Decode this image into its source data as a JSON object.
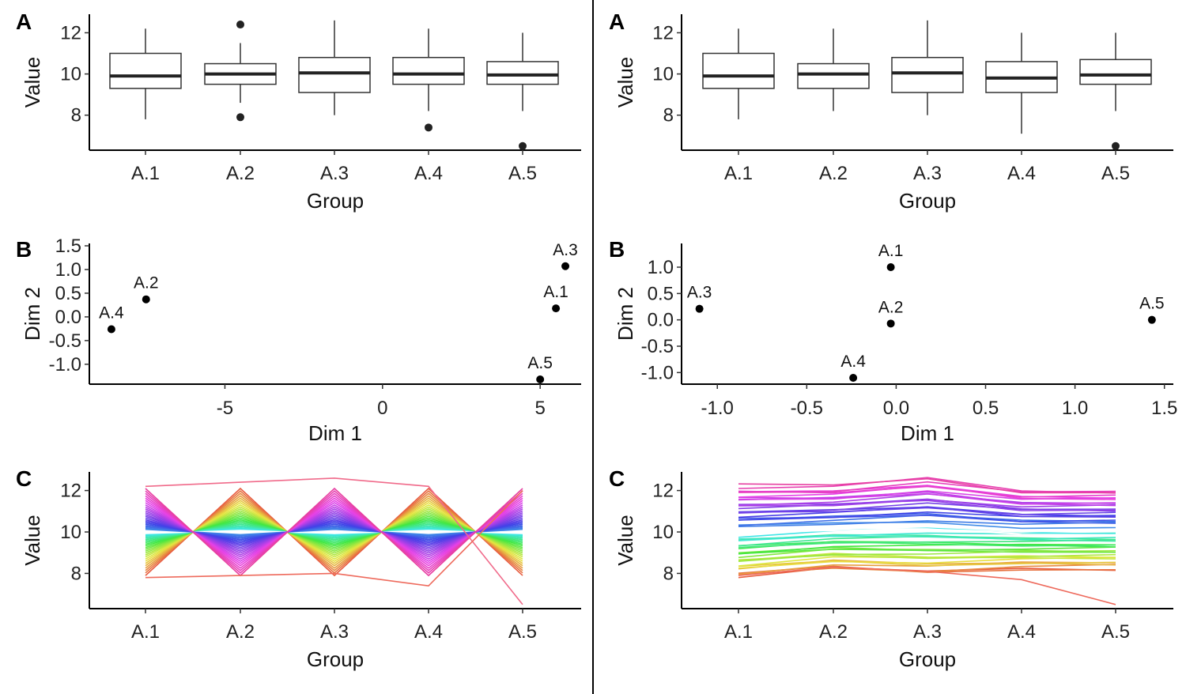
{
  "chart_data": [
    {
      "type": "box",
      "panel": "A",
      "column": "left",
      "xlabel": "Group",
      "ylabel": "Value",
      "categories": [
        "A.1",
        "A.2",
        "A.3",
        "A.4",
        "A.5"
      ],
      "ylim": [
        6.3,
        12.9
      ],
      "yticks": [
        8,
        10,
        12
      ],
      "ytick_labels": [
        "8",
        "10",
        "12"
      ],
      "boxes": [
        {
          "whisker_low": 7.8,
          "q1": 9.3,
          "median": 9.9,
          "q3": 11.0,
          "whisker_high": 12.2,
          "outliers": []
        },
        {
          "whisker_low": 8.6,
          "q1": 9.5,
          "median": 10.0,
          "q3": 10.5,
          "whisker_high": 11.5,
          "outliers": [
            12.4,
            7.9
          ]
        },
        {
          "whisker_low": 8.0,
          "q1": 9.1,
          "median": 10.05,
          "q3": 10.8,
          "whisker_high": 12.6,
          "outliers": []
        },
        {
          "whisker_low": 8.2,
          "q1": 9.5,
          "median": 10.0,
          "q3": 10.8,
          "whisker_high": 12.2,
          "outliers": [
            7.4
          ]
        },
        {
          "whisker_low": 8.2,
          "q1": 9.5,
          "median": 9.95,
          "q3": 10.6,
          "whisker_high": 12.0,
          "outliers": [
            6.5
          ]
        }
      ]
    },
    {
      "type": "box",
      "panel": "A",
      "column": "right",
      "xlabel": "Group",
      "ylabel": "Value",
      "categories": [
        "A.1",
        "A.2",
        "A.3",
        "A.4",
        "A.5"
      ],
      "ylim": [
        6.3,
        12.9
      ],
      "yticks": [
        8,
        10,
        12
      ],
      "ytick_labels": [
        "8",
        "10",
        "12"
      ],
      "boxes": [
        {
          "whisker_low": 7.8,
          "q1": 9.3,
          "median": 9.9,
          "q3": 11.0,
          "whisker_high": 12.2,
          "outliers": []
        },
        {
          "whisker_low": 8.2,
          "q1": 9.3,
          "median": 10.0,
          "q3": 10.5,
          "whisker_high": 12.2,
          "outliers": []
        },
        {
          "whisker_low": 8.0,
          "q1": 9.1,
          "median": 10.05,
          "q3": 10.8,
          "whisker_high": 12.6,
          "outliers": []
        },
        {
          "whisker_low": 7.1,
          "q1": 9.1,
          "median": 9.8,
          "q3": 10.6,
          "whisker_high": 12.0,
          "outliers": []
        },
        {
          "whisker_low": 8.2,
          "q1": 9.5,
          "median": 9.95,
          "q3": 10.7,
          "whisker_high": 12.0,
          "outliers": [
            6.5
          ]
        }
      ]
    },
    {
      "type": "scatter",
      "panel": "B",
      "column": "left",
      "xlabel": "Dim 1",
      "ylabel": "Dim 2",
      "xlim": [
        -9.3,
        6.3
      ],
      "ylim": [
        -1.42,
        1.55
      ],
      "xticks": [
        -5,
        0,
        5
      ],
      "xtick_labels": [
        "-5",
        "0",
        "5"
      ],
      "yticks": [
        -1.0,
        -0.5,
        0.0,
        0.5,
        1.0,
        1.5
      ],
      "ytick_labels": [
        "-1.0",
        "-0.5",
        "0.0",
        "0.5",
        "1.0",
        "1.5"
      ],
      "points": [
        {
          "label": "A.1",
          "x": 5.5,
          "y": 0.18
        },
        {
          "label": "A.2",
          "x": -7.5,
          "y": 0.37
        },
        {
          "label": "A.3",
          "x": 5.8,
          "y": 1.07
        },
        {
          "label": "A.4",
          "x": -8.6,
          "y": -0.26
        },
        {
          "label": "A.5",
          "x": 5.0,
          "y": -1.32
        }
      ]
    },
    {
      "type": "scatter",
      "panel": "B",
      "column": "right",
      "xlabel": "Dim 1",
      "ylabel": "Dim 2",
      "xlim": [
        -1.2,
        1.55
      ],
      "ylim": [
        -1.22,
        1.45
      ],
      "xticks": [
        -1.0,
        -0.5,
        0.0,
        0.5,
        1.0,
        1.5
      ],
      "xtick_labels": [
        "-1.0",
        "-0.5",
        "0.0",
        "0.5",
        "1.0",
        "1.5"
      ],
      "yticks": [
        -1.0,
        -0.5,
        0.0,
        0.5,
        1.0
      ],
      "ytick_labels": [
        "-1.0",
        "-0.5",
        "0.0",
        "0.5",
        "1.0"
      ],
      "points": [
        {
          "label": "A.1",
          "x": -0.03,
          "y": 1.0
        },
        {
          "label": "A.2",
          "x": -0.03,
          "y": -0.07
        },
        {
          "label": "A.3",
          "x": -1.1,
          "y": 0.21
        },
        {
          "label": "A.4",
          "x": -0.24,
          "y": -1.1
        },
        {
          "label": "A.5",
          "x": 1.43,
          "y": 0.0
        }
      ]
    },
    {
      "type": "line",
      "panel": "C",
      "column": "left",
      "xlabel": "Group",
      "ylabel": "Value",
      "categories": [
        "A.1",
        "A.2",
        "A.3",
        "A.4",
        "A.5"
      ],
      "ylim": [
        6.3,
        12.9
      ],
      "yticks": [
        8,
        10,
        12
      ],
      "ytick_labels": [
        "8",
        "10",
        "12"
      ],
      "crossing": [
        10.0,
        10.0,
        10.0,
        10.0,
        10.0
      ],
      "amplitude": [
        1.0,
        -1.0,
        1.0,
        -1.0,
        1.0
      ],
      "series_count": 50,
      "color_scale": "hue gradient (red, orange, green, teal, blue, pink), white band at centre",
      "extremes": [
        {
          "values": [
            12.2,
            12.4,
            12.6,
            12.2,
            6.5
          ]
        },
        {
          "values": [
            7.8,
            7.9,
            8.0,
            7.4,
            12.0
          ]
        }
      ]
    },
    {
      "type": "line",
      "panel": "C",
      "column": "right",
      "xlabel": "Group",
      "ylabel": "Value",
      "categories": [
        "A.1",
        "A.2",
        "A.3",
        "A.4",
        "A.5"
      ],
      "ylim": [
        6.3,
        12.9
      ],
      "yticks": [
        8,
        10,
        12
      ],
      "ytick_labels": [
        "8",
        "10",
        "12"
      ],
      "profile_low": [
        7.8,
        8.2,
        8.0,
        8.2,
        8.2
      ],
      "profile_high": [
        12.2,
        12.2,
        12.6,
        12.0,
        12.0
      ],
      "series_count": 50,
      "color_scale": "hue gradient (red, orange, green, teal, blue, pink), white band at centre",
      "extremes": [
        {
          "values": [
            7.9,
            8.3,
            8.1,
            7.7,
            6.5
          ]
        }
      ]
    }
  ]
}
